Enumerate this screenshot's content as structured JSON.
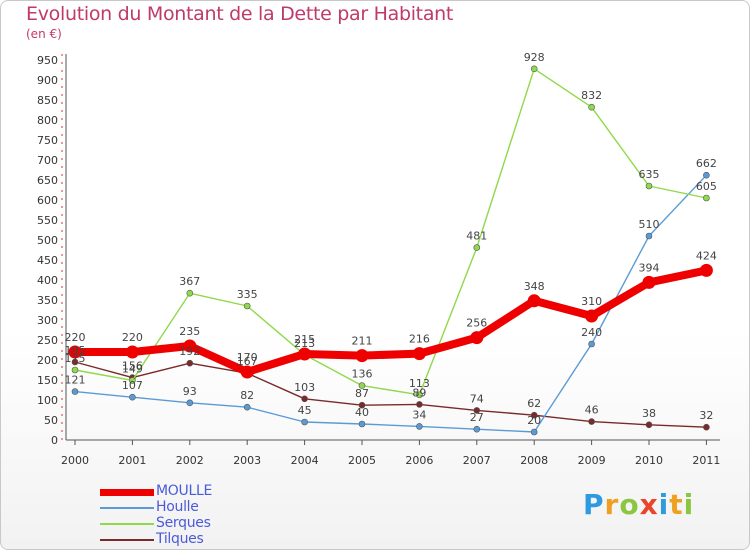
{
  "title": "Evolution du Montant de la Dette par Habitant",
  "subtitle": "(en €)",
  "logo": "Proxiti",
  "chart_data": {
    "type": "line",
    "title": "Evolution du Montant de la Dette par Habitant",
    "subtitle": "(en €)",
    "x": [
      "2000",
      "2001",
      "2002",
      "2003",
      "2004",
      "2005",
      "2006",
      "2007",
      "2008",
      "2009",
      "2010",
      "2011"
    ],
    "yticks": [
      0,
      50,
      100,
      150,
      200,
      250,
      300,
      350,
      400,
      450,
      500,
      550,
      600,
      650,
      700,
      750,
      800,
      850,
      900,
      950
    ],
    "ylim": [
      0,
      950
    ],
    "grid": false,
    "legend_position": "bottom-left",
    "series": [
      {
        "name": "MOULLE",
        "color": "#ee0000",
        "values": [
          220,
          220,
          235,
          170,
          215,
          211,
          216,
          256,
          348,
          310,
          394,
          424
        ]
      },
      {
        "name": "Houlle",
        "color": "#5b9bd5",
        "values": [
          121,
          107,
          93,
          82,
          45,
          40,
          34,
          27,
          20,
          240,
          510,
          662
        ]
      },
      {
        "name": "Serques",
        "color": "#8fd94a",
        "values": [
          175,
          149,
          367,
          335,
          213,
          136,
          113,
          481,
          928,
          832,
          635,
          605
        ]
      },
      {
        "name": "Tilques",
        "color": "#7a2a2a",
        "values": [
          195,
          156,
          192,
          167,
          103,
          87,
          89,
          74,
          62,
          46,
          38,
          32
        ]
      }
    ]
  }
}
